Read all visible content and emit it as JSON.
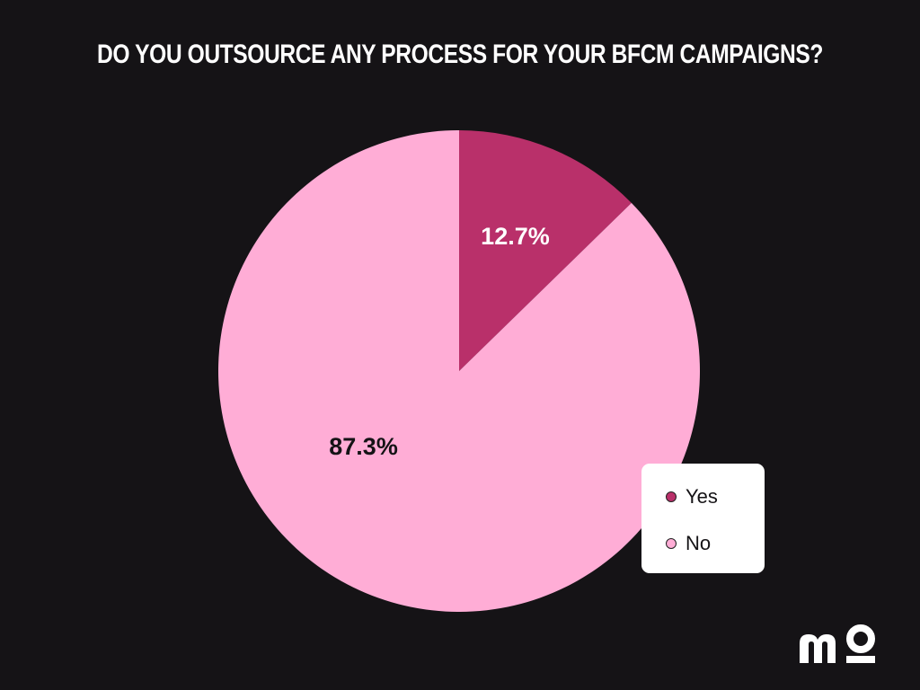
{
  "chart_data": {
    "type": "pie",
    "title": "DO YOU OUTSOURCE ANY PROCESS FOR YOUR BFCM CAMPAIGNS?",
    "slices": [
      {
        "label": "Yes",
        "value": 12.7,
        "value_label": "12.7%",
        "color": "#b9306a",
        "label_color": "#ffffff"
      },
      {
        "label": "No",
        "value": 87.3,
        "value_label": "87.3%",
        "color": "#ffadd6",
        "label_color": "#151316"
      }
    ],
    "start_angle": "12 o'clock",
    "direction": "clockwise",
    "legend_position": "bottom-right"
  },
  "colors": {
    "background": "#151316",
    "title": "#ffffff",
    "legend_background": "#ffffff"
  },
  "brand": {
    "logo": "mo-logo"
  }
}
